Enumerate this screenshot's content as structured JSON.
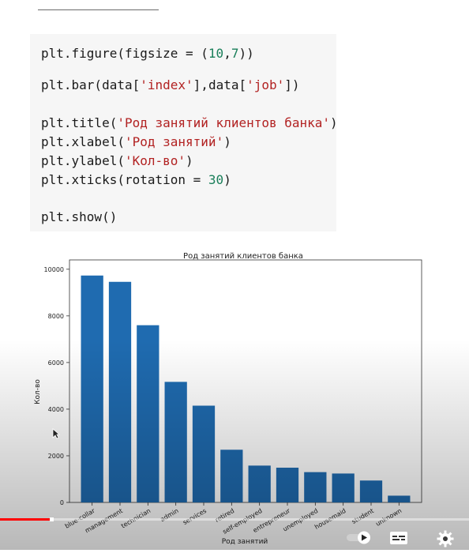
{
  "code": {
    "lines": [
      [
        {
          "t": "plt.figure(figsize = (",
          "c": "fn"
        },
        {
          "t": "10",
          "c": "num"
        },
        {
          "t": ",",
          "c": "fn"
        },
        {
          "t": "7",
          "c": "num"
        },
        {
          "t": "))",
          "c": "fn"
        }
      ],
      [],
      [
        {
          "t": "plt.bar(data[",
          "c": "fn"
        },
        {
          "t": "'index'",
          "c": "str"
        },
        {
          "t": "],data[",
          "c": "fn"
        },
        {
          "t": "'job'",
          "c": "str"
        },
        {
          "t": "])",
          "c": "fn"
        }
      ],
      [],
      [
        {
          "t": "plt.title(",
          "c": "fn"
        },
        {
          "t": "'Род занятий клиентов банка'",
          "c": "str"
        },
        {
          "t": ")",
          "c": "fn"
        }
      ],
      [
        {
          "t": "plt.xlabel(",
          "c": "fn"
        },
        {
          "t": "'Род занятий'",
          "c": "str"
        },
        {
          "t": ")",
          "c": "fn"
        }
      ],
      [
        {
          "t": "plt.ylabel(",
          "c": "fn"
        },
        {
          "t": "'Кол-во'",
          "c": "str"
        },
        {
          "t": ")",
          "c": "fn"
        }
      ],
      [
        {
          "t": "plt.xticks(rotation = ",
          "c": "fn"
        },
        {
          "t": "30",
          "c": "num"
        },
        {
          "t": ")",
          "c": "fn"
        }
      ],
      [],
      [
        {
          "t": "plt.show()",
          "c": "fn"
        }
      ]
    ]
  },
  "chart_data": {
    "type": "bar",
    "title": "Род занятий клиентов банка",
    "xlabel": "Род занятий",
    "ylabel": "Кол-во",
    "categories": [
      "blue-collar",
      "management",
      "technician",
      "admin",
      "services",
      "retired",
      "self-employed",
      "entrepreneur",
      "unemployed",
      "housemaid",
      "student",
      "unknown"
    ],
    "values": [
      9730,
      9460,
      7600,
      5170,
      4150,
      2260,
      1580,
      1490,
      1300,
      1240,
      940,
      290
    ],
    "ylim": [
      0,
      10400
    ],
    "yticks": [
      0,
      2000,
      4000,
      6000,
      8000,
      10000
    ],
    "bar_color": "#1f6bb0",
    "grid": false,
    "xtick_rotation": 30
  },
  "player": {
    "progress_fraction": 0.11,
    "accent": "#ff0000",
    "icons": [
      "autoplay-toggle-icon",
      "subtitles-icon",
      "settings-gear-icon"
    ]
  }
}
